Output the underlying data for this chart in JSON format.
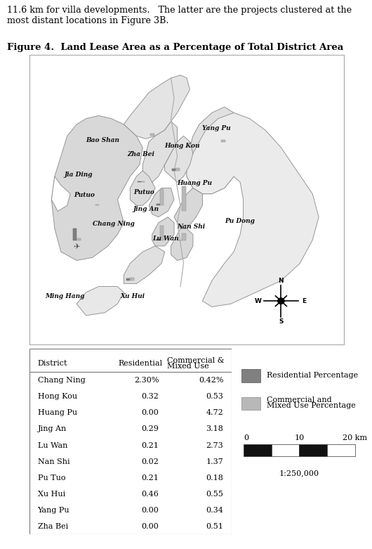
{
  "intro_text_line1": "11.6 km for villa developments.   The latter are the projects clustered at the",
  "intro_text_line2": "most distant locations in Figure 3B.",
  "figure_title": "Figure 4.  Land Lease Area as a Percentage of Total District Area",
  "table_data": [
    [
      "Chang Ning",
      "2.30%",
      "0.42%"
    ],
    [
      "Hong Kou",
      "0.32",
      "0.53"
    ],
    [
      "Huang Pu",
      "0.00",
      "4.72"
    ],
    [
      "Jing An",
      "0.29",
      "3.18"
    ],
    [
      "Lu Wan",
      "0.21",
      "2.73"
    ],
    [
      "Nan Shi",
      "0.02",
      "1.37"
    ],
    [
      "Pu Tuo",
      "0.21",
      "0.18"
    ],
    [
      "Xu Hui",
      "0.46",
      "0.55"
    ],
    [
      "Yang Pu",
      "0.00",
      "0.34"
    ],
    [
      "Zha Bei",
      "0.00",
      "0.51"
    ]
  ],
  "bg_color": "#ffffff",
  "map_border_color": "#aaaaaa",
  "map_bg": "#ffffff",
  "land_fill": "#d8d8d8",
  "land_edge": "#888888",
  "bar_dark": "#808080",
  "bar_light": "#b8b8b8",
  "table_font_size": 8.0,
  "intro_font_size": 9.2,
  "title_font_size": 9.5,
  "label_font_size": 6.5
}
